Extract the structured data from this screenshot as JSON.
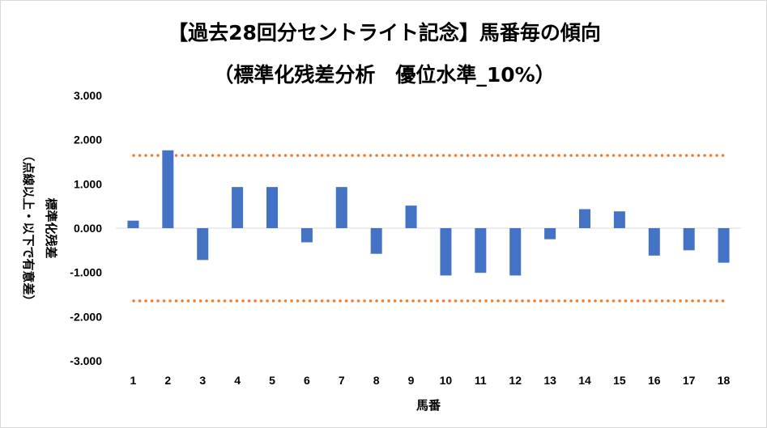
{
  "chart_data": {
    "type": "bar",
    "title_line1": "【過去28回分セントライト記念】馬番毎の傾向",
    "title_line2": "（標準化残差分析　優位水準_10%）",
    "xlabel": "馬番",
    "ylabel_main": "標準化残差",
    "ylabel_sub": "（点線以上・以下で有意差）",
    "categories": [
      "1",
      "2",
      "3",
      "4",
      "5",
      "6",
      "7",
      "8",
      "9",
      "10",
      "11",
      "12",
      "13",
      "14",
      "15",
      "16",
      "17",
      "18"
    ],
    "values": [
      0.17,
      1.76,
      -0.72,
      0.93,
      0.93,
      -0.32,
      0.93,
      -0.58,
      0.51,
      -1.07,
      -1.01,
      -1.07,
      -0.25,
      0.43,
      0.38,
      -0.62,
      -0.5,
      -0.78
    ],
    "ylim": [
      -3,
      3
    ],
    "yticks": [
      "3.000",
      "2.000",
      "1.000",
      "0.000",
      "-1.000",
      "-2.000",
      "-3.000"
    ],
    "thresholds": [
      1.645,
      -1.645
    ],
    "bar_color": "#4472c4",
    "threshold_color": "#ed7d31",
    "grid": false
  }
}
